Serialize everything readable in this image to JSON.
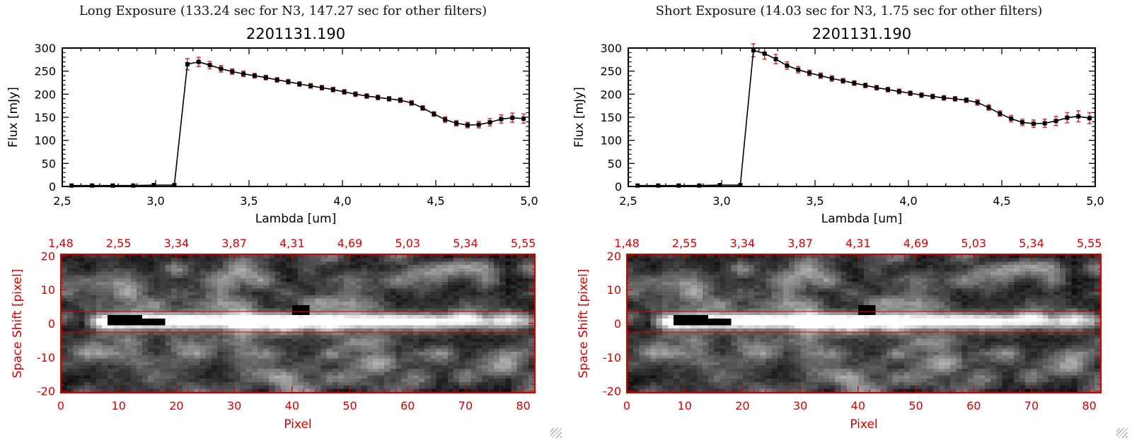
{
  "colors": {
    "accent_red": "#d40000",
    "error_red": "#d43030",
    "plot_black": "#000000"
  },
  "panels": [
    {
      "title": "Long Exposure (133.24 sec for N3, 147.27 sec for other filters)",
      "spectrum": {
        "type": "line",
        "title": "2201131.190",
        "xlabel": "Lambda [um]",
        "ylabel": "Flux [mJy]",
        "xlim": [
          2.5,
          5.0
        ],
        "ylim": [
          0,
          300
        ],
        "xticks": [
          2.5,
          3.0,
          3.5,
          4.0,
          4.5,
          5.0
        ],
        "xtick_labels": [
          "2,5",
          "3,0",
          "3,5",
          "4,0",
          "4,5",
          "5,0"
        ],
        "yticks": [
          0,
          50,
          100,
          150,
          200,
          250,
          300
        ],
        "ytick_labels": [
          "0",
          "50",
          "100",
          "150",
          "200",
          "250",
          "300"
        ],
        "x": [
          2.55,
          2.66,
          2.77,
          2.88,
          2.99,
          3.1,
          3.17,
          3.23,
          3.29,
          3.35,
          3.41,
          3.47,
          3.53,
          3.59,
          3.65,
          3.71,
          3.77,
          3.83,
          3.89,
          3.95,
          4.01,
          4.07,
          4.13,
          4.19,
          4.25,
          4.31,
          4.37,
          4.43,
          4.49,
          4.55,
          4.61,
          4.67,
          4.73,
          4.79,
          4.85,
          4.91,
          4.97
        ],
        "y": [
          2,
          2,
          2,
          2,
          3,
          3,
          265,
          270,
          263,
          255,
          249,
          244,
          240,
          236,
          231,
          227,
          222,
          218,
          214,
          210,
          205,
          200,
          196,
          193,
          190,
          187,
          181,
          170,
          157,
          145,
          137,
          133,
          134,
          139,
          146,
          149,
          147
        ],
        "yerr": [
          0,
          0,
          0,
          0,
          0,
          0,
          12,
          10,
          8,
          7,
          6,
          6,
          5,
          5,
          5,
          5,
          5,
          5,
          5,
          5,
          5,
          5,
          5,
          5,
          5,
          5,
          5,
          5,
          5,
          6,
          6,
          6,
          7,
          8,
          9,
          10,
          10
        ]
      },
      "image": {
        "type": "heatmap",
        "xlabel": "Pixel",
        "ylabel": "Space Shift [pixel]",
        "top_axis_labels": [
          "1,48",
          "2,55",
          "3,34",
          "3,87",
          "4,31",
          "4,69",
          "5,03",
          "5,34",
          "5,55"
        ],
        "xticks": [
          0,
          10,
          20,
          30,
          40,
          50,
          60,
          70,
          80
        ],
        "xtick_labels": [
          "0",
          "10",
          "20",
          "30",
          "40",
          "50",
          "60",
          "70",
          "80"
        ],
        "yticks": [
          -20,
          -10,
          0,
          10,
          20
        ],
        "ytick_labels": [
          "-20",
          "-10",
          "0",
          "10",
          "20"
        ],
        "xlim": [
          0,
          82
        ],
        "ylim": [
          -20.5,
          20.5
        ],
        "aperture_lines": [
          3.5,
          -2.5
        ]
      }
    },
    {
      "title": "Short Exposure (14.03 sec for N3, 1.75 sec for other filters)",
      "spectrum": {
        "type": "line",
        "title": "2201131.190",
        "xlabel": "Lambda [um]",
        "ylabel": "Flux [mJy]",
        "xlim": [
          2.5,
          5.0
        ],
        "ylim": [
          0,
          300
        ],
        "xticks": [
          2.5,
          3.0,
          3.5,
          4.0,
          4.5,
          5.0
        ],
        "xtick_labels": [
          "2,5",
          "3,0",
          "3,5",
          "4,0",
          "4,5",
          "5,0"
        ],
        "yticks": [
          0,
          50,
          100,
          150,
          200,
          250,
          300
        ],
        "ytick_labels": [
          "0",
          "50",
          "100",
          "150",
          "200",
          "250",
          "300"
        ],
        "x": [
          2.55,
          2.66,
          2.77,
          2.88,
          2.99,
          3.1,
          3.17,
          3.23,
          3.29,
          3.35,
          3.41,
          3.47,
          3.53,
          3.59,
          3.65,
          3.71,
          3.77,
          3.83,
          3.89,
          3.95,
          4.01,
          4.07,
          4.13,
          4.19,
          4.25,
          4.31,
          4.37,
          4.43,
          4.49,
          4.55,
          4.61,
          4.67,
          4.73,
          4.79,
          4.85,
          4.91,
          4.97
        ],
        "y": [
          2,
          2,
          2,
          2,
          3,
          3,
          295,
          288,
          276,
          262,
          253,
          246,
          240,
          234,
          229,
          224,
          219,
          214,
          210,
          206,
          202,
          198,
          195,
          192,
          190,
          187,
          182,
          171,
          158,
          147,
          139,
          136,
          137,
          142,
          149,
          152,
          148
        ],
        "yerr": [
          0,
          0,
          0,
          0,
          0,
          0,
          14,
          12,
          10,
          8,
          7,
          6,
          6,
          6,
          5,
          5,
          5,
          5,
          5,
          5,
          5,
          5,
          5,
          5,
          5,
          5,
          6,
          6,
          6,
          7,
          7,
          8,
          9,
          10,
          11,
          12,
          12
        ]
      },
      "image": {
        "type": "heatmap",
        "xlabel": "Pixel",
        "ylabel": "Space Shift [pixel]",
        "top_axis_labels": [
          "1,48",
          "2,55",
          "3,34",
          "3,87",
          "4,31",
          "4,69",
          "5,03",
          "5,34",
          "5,55"
        ],
        "xticks": [
          0,
          10,
          20,
          30,
          40,
          50,
          60,
          70,
          80
        ],
        "xtick_labels": [
          "0",
          "10",
          "20",
          "30",
          "40",
          "50",
          "60",
          "70",
          "80"
        ],
        "yticks": [
          -20,
          -10,
          0,
          10,
          20
        ],
        "ytick_labels": [
          "-20",
          "-10",
          "0",
          "10",
          "20"
        ],
        "xlim": [
          0,
          82
        ],
        "ylim": [
          -20.5,
          20.5
        ],
        "aperture_lines": [
          3.5,
          -2.5
        ]
      }
    }
  ]
}
